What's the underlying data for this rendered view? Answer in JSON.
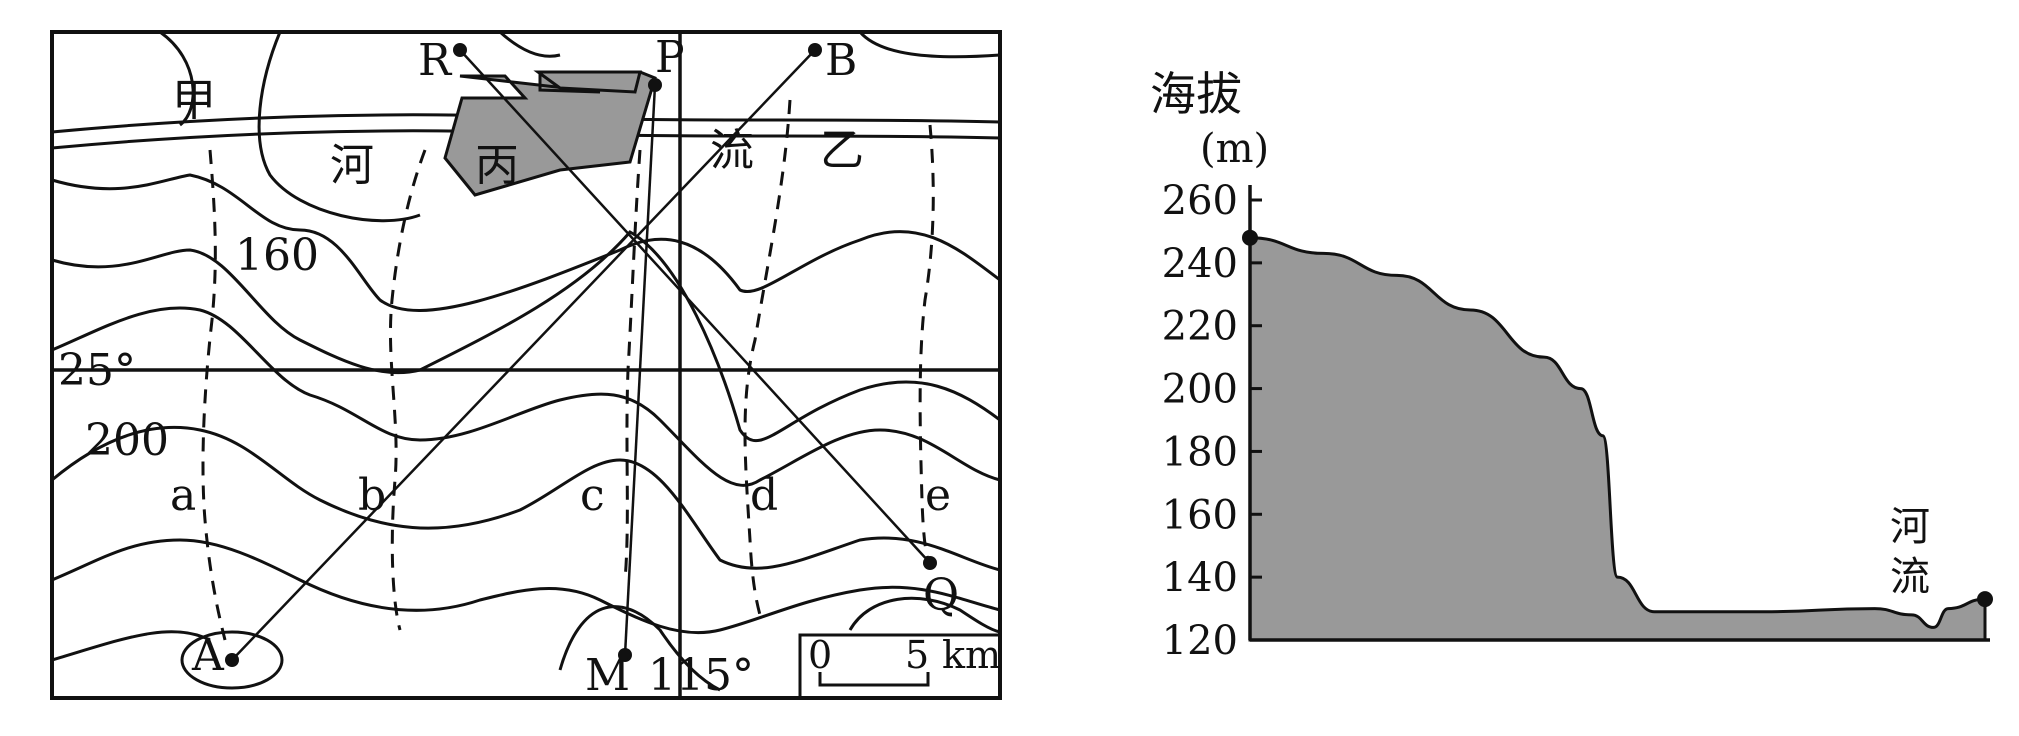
{
  "map": {
    "region_labels": {
      "jia": "甲",
      "yi": "乙",
      "bing": "丙",
      "river_he": "河",
      "river_liu": "流"
    },
    "contour_labels": {
      "c160": "160",
      "c200": "200"
    },
    "gridlines": {
      "latitude": "25°",
      "longitude": "115°"
    },
    "points": {
      "R": "R",
      "P": "P",
      "B": "B",
      "A": "A",
      "M": "M",
      "Q": "Q"
    },
    "valley_labels": {
      "a": "a",
      "b": "b",
      "c": "c",
      "d": "d",
      "e": "e"
    },
    "scale": {
      "zero": "0",
      "five": "5",
      "unit": "km"
    }
  },
  "profile": {
    "ylabel_line1": "海拔",
    "ylabel_line2": "(m)",
    "river_line1": "河",
    "river_line2": "流",
    "fill_color": "#999999"
  },
  "chart_data": {
    "type": "area",
    "title": "",
    "ylabel": "海拔 (m)",
    "xlabel": "",
    "ylim": [
      120,
      260
    ],
    "yticks": [
      "260",
      "240",
      "220",
      "200",
      "180",
      "160",
      "140",
      "120"
    ],
    "x": [
      0,
      0.1,
      0.2,
      0.3,
      0.4,
      0.45,
      0.48,
      0.5,
      0.55,
      0.7,
      0.85,
      0.9,
      0.93,
      0.95,
      1.0
    ],
    "values": [
      248,
      243,
      236,
      225,
      210,
      200,
      185,
      140,
      129,
      129,
      130,
      128,
      124,
      130,
      133
    ],
    "annotations": [
      "河",
      "流"
    ]
  }
}
